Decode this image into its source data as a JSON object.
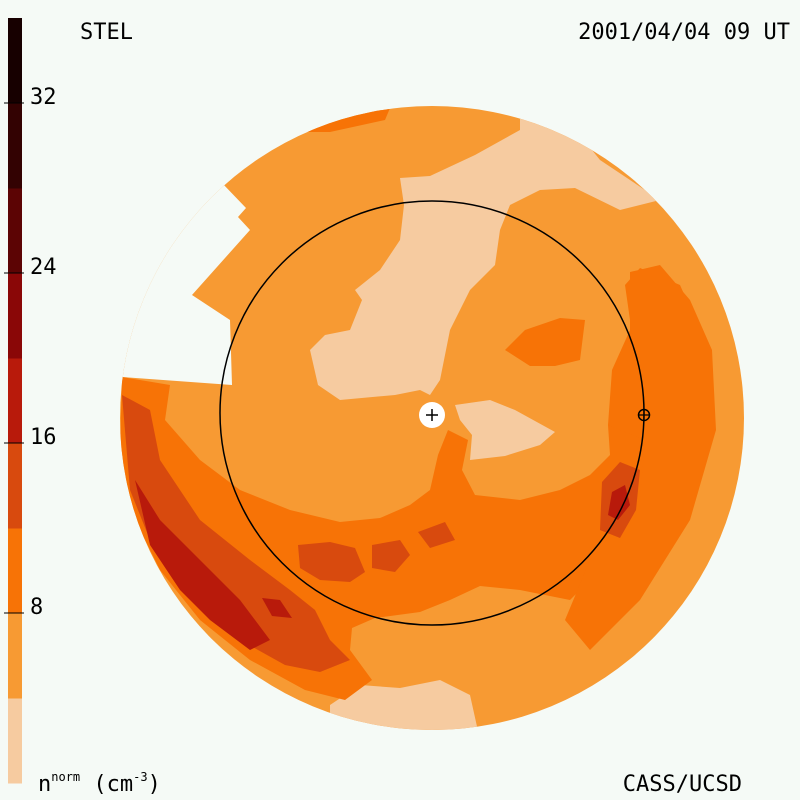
{
  "header": {
    "station": "STEL",
    "datetime": "2001/04/04 09 UT"
  },
  "footer": {
    "credit": "CASS/UCSD",
    "units_base": "n",
    "units_sup": "norm",
    "units_open": " (cm",
    "units_exp": "-3",
    "units_close": ")"
  },
  "chart_data": {
    "type": "heatmap",
    "title": "",
    "colorbar": {
      "label": "n^norm (cm^-3)",
      "ticks": [
        8,
        16,
        24,
        32
      ],
      "tick_labels": [
        "8",
        "16",
        "24",
        "32"
      ],
      "levels": [
        {
          "min": 0,
          "max": 4,
          "color": "#f6cba0"
        },
        {
          "min": 4,
          "max": 8,
          "color": "#f79a33"
        },
        {
          "min": 8,
          "max": 12,
          "color": "#f77306"
        },
        {
          "min": 12,
          "max": 16,
          "color": "#d84a0e"
        },
        {
          "min": 16,
          "max": 20,
          "color": "#b81a0b"
        },
        {
          "min": 20,
          "max": 24,
          "color": "#8a0707"
        },
        {
          "min": 24,
          "max": 28,
          "color": "#5c0404"
        },
        {
          "min": 28,
          "max": 32,
          "color": "#330202"
        },
        {
          "min": 32,
          "max": 36,
          "color": "#170000"
        }
      ]
    },
    "markers": [
      "sun-center",
      "earth"
    ]
  }
}
